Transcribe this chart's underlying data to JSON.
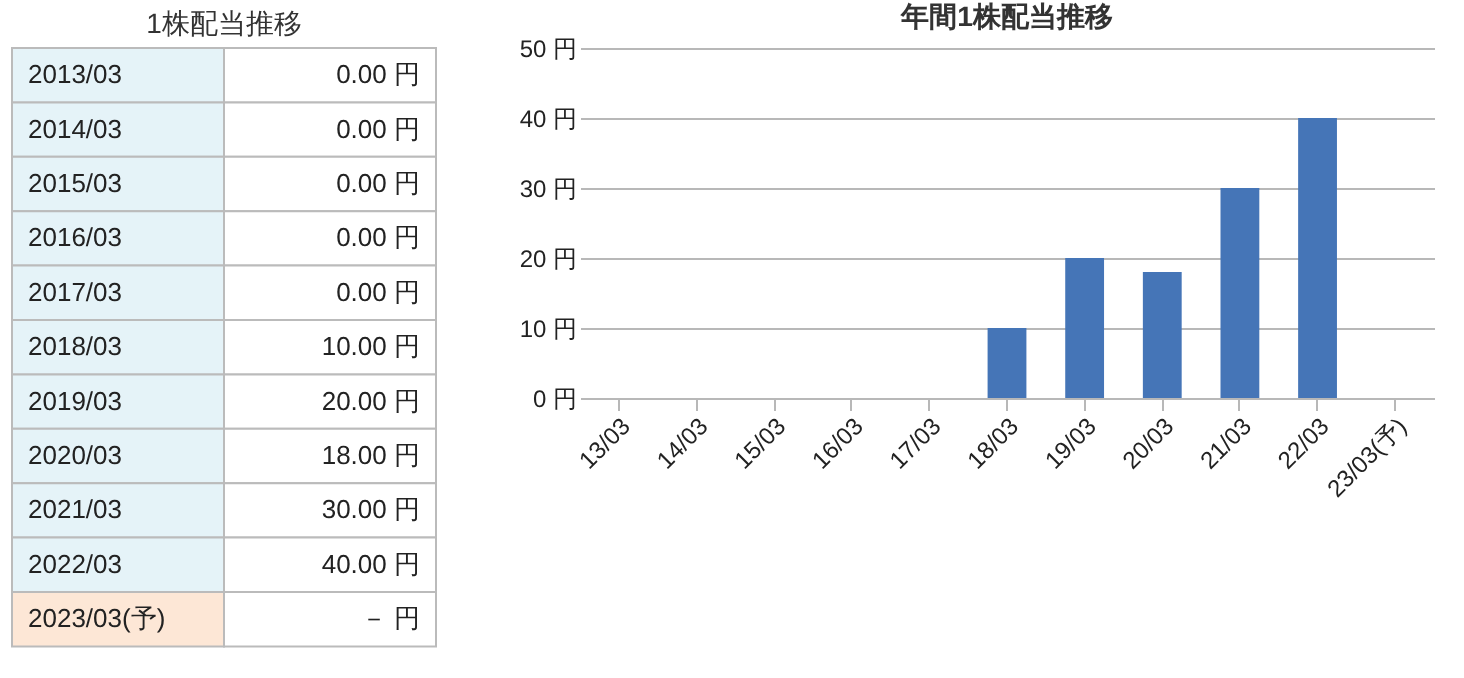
{
  "chart_data": [
    {
      "type": "other",
      "title": "1株配当推移",
      "annotations": [
        "2013/03",
        "0.00 円",
        "2014/03",
        "0.00 円",
        "2015/03",
        "0.00 円",
        "2016/03",
        "0.00 円",
        "2017/03",
        "0.00 円",
        "2018/03",
        "10.00 円",
        "2019/03",
        "20.00 円",
        "2020/03",
        "18.00 円",
        "2021/03",
        "30.00 円",
        "2022/03",
        "40.00 円",
        "2023/03(予)",
        "－ 円"
      ]
    },
    {
      "type": "bar",
      "title": "年間1株配当推移",
      "categories": [
        "13/03",
        "14/03",
        "15/03",
        "16/03",
        "17/03",
        "18/03",
        "19/03",
        "20/03",
        "21/03",
        "22/03",
        "23/03(予)"
      ],
      "values": [
        0,
        0,
        0,
        0,
        0,
        10,
        20,
        18,
        30,
        40,
        null
      ],
      "color": "#4575b7",
      "ylim": [
        0,
        50
      ],
      "yticks": [
        {
          "value": 0,
          "label": "0 円"
        },
        {
          "value": 10,
          "label": "10 円"
        },
        {
          "value": 20,
          "label": "20 円"
        },
        {
          "value": 30,
          "label": "30 円"
        },
        {
          "value": 40,
          "label": "40 円"
        },
        {
          "value": 50,
          "label": "50 円"
        }
      ],
      "grid": "y"
    }
  ]
}
